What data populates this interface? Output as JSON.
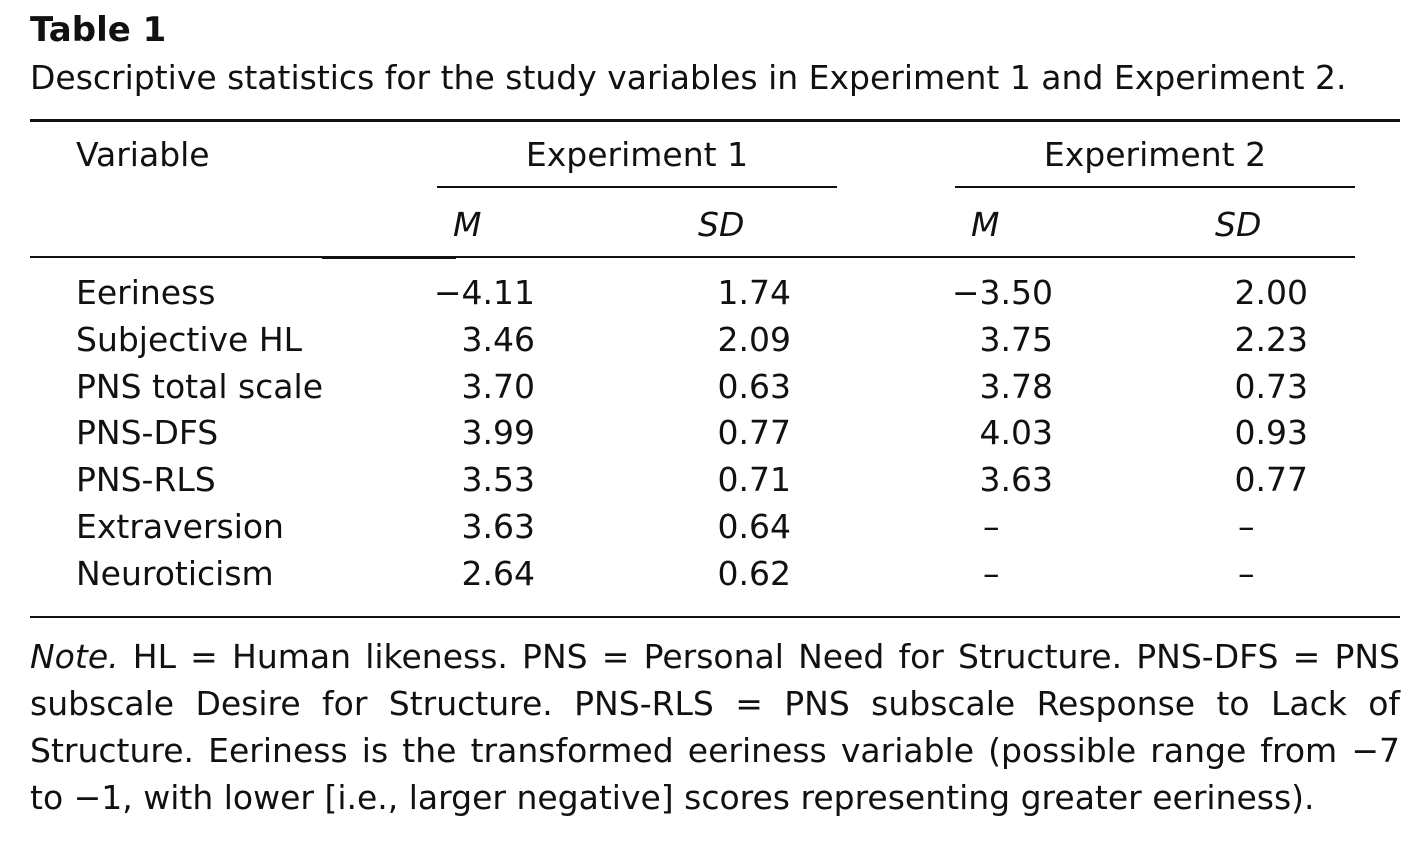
{
  "table": {
    "label": "Table 1",
    "caption": "Descriptive statistics for the study variables in Experiment 1 and Experiment 2.",
    "header": {
      "variable": "Variable",
      "groups": [
        "Experiment 1",
        "Experiment 2"
      ],
      "subcols": [
        "M",
        "SD",
        "M",
        "SD"
      ]
    },
    "rows": [
      {
        "variable": "Eeriness",
        "values": [
          "−4.11",
          "1.74",
          "−3.50",
          "2.00"
        ]
      },
      {
        "variable": "Subjective HL",
        "values": [
          "3.46",
          "2.09",
          "3.75",
          "2.23"
        ]
      },
      {
        "variable": "PNS total scale",
        "values": [
          "3.70",
          "0.63",
          "3.78",
          "0.73"
        ]
      },
      {
        "variable": "PNS-DFS",
        "values": [
          "3.99",
          "0.77",
          "4.03",
          "0.93"
        ]
      },
      {
        "variable": "PNS-RLS",
        "values": [
          "3.53",
          "0.71",
          "3.63",
          "0.77"
        ]
      },
      {
        "variable": "Extraversion",
        "values": [
          "3.63",
          "0.64",
          "–",
          "–"
        ]
      },
      {
        "variable": "Neuroticism",
        "values": [
          "2.64",
          "0.62",
          "–",
          "–"
        ]
      }
    ],
    "note": {
      "label": "Note.",
      "text": " HL = Human likeness. PNS = Personal Need for Structure. PNS-DFS = PNS subscale Desire for Structure. PNS-RLS = PNS subscale Response to Lack of Structure. Eeriness is the transformed eeriness variable (possible range from −7 to −1, with lower [i.e., larger negative] scores representing greater eeriness)."
    }
  }
}
